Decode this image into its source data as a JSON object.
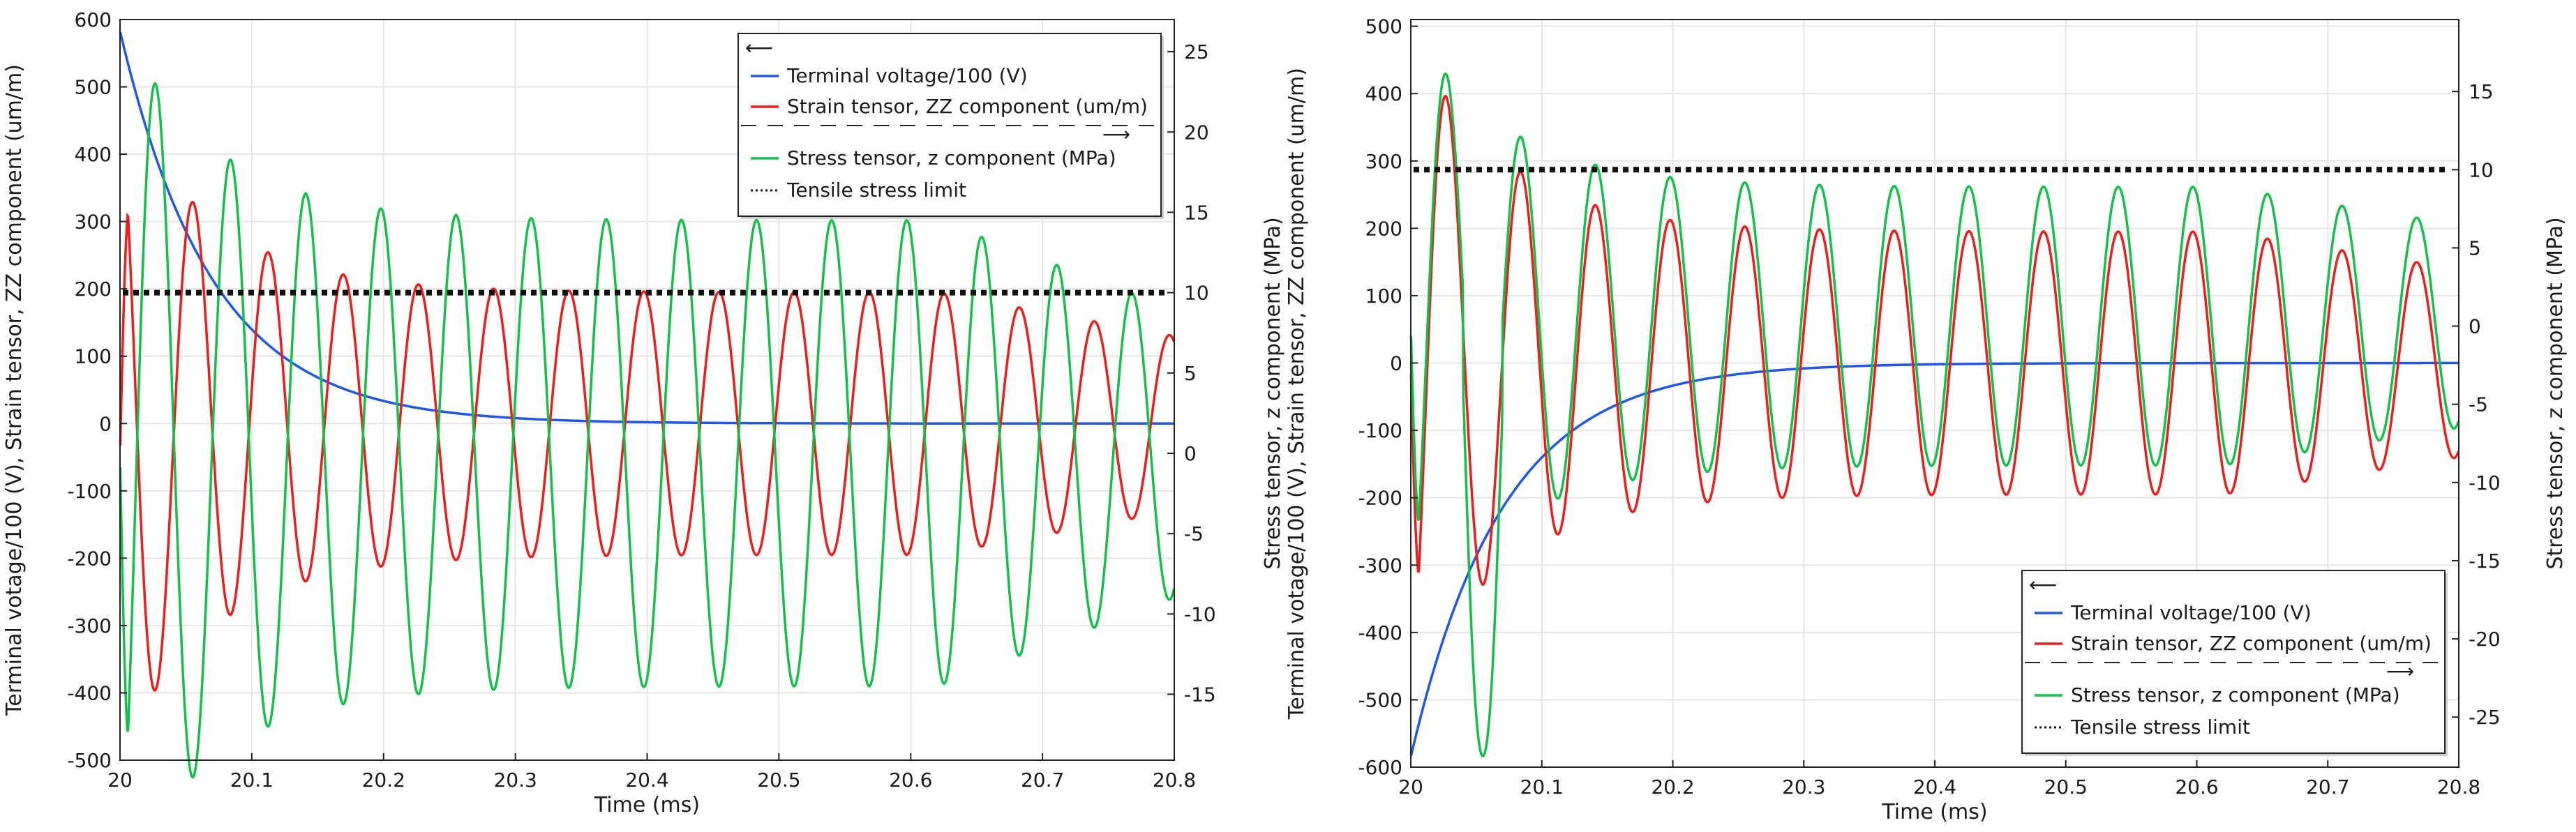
{
  "chart_data": [
    {
      "type": "line",
      "xlabel": "Time (ms)",
      "ylabel": "Terminal votage/100 (V), Strain tensor, ZZ component (um/m)",
      "y2label": "",
      "xlim": [
        20,
        20.8
      ],
      "ylim": [
        -500,
        600
      ],
      "y2lim": [
        -19.1,
        27
      ],
      "x_ticks": [
        "20",
        "20.1",
        "20.2",
        "20.3",
        "20.4",
        "20.5",
        "20.6",
        "20.7",
        "20.8"
      ],
      "y_ticks": [
        "600",
        "500",
        "400",
        "300",
        "200",
        "100",
        "0",
        "-100",
        "-200",
        "-300",
        "-400",
        "-500"
      ],
      "y2_ticks": [
        "25",
        "20",
        "15",
        "10",
        "5",
        "0",
        "-5",
        "-10",
        "-15"
      ],
      "legend": {
        "left_arrow": "⟵",
        "right_arrow": "⟶",
        "entries": [
          {
            "label": "Terminal voltage/100 (V)",
            "color": "#1f57e6",
            "style": "solid"
          },
          {
            "label": "Strain tensor, ZZ component (um/m)",
            "color": "#ee1c1c",
            "style": "solid"
          },
          {
            "label": "Stress tensor, z component (MPa)",
            "color": "#12c14a",
            "style": "solid"
          },
          {
            "label": "Tensile stress limit",
            "color": "#111111",
            "style": "dotted"
          }
        ]
      },
      "series": [
        {
          "name": "Terminal voltage/100 (V)",
          "axis": "left",
          "model": "decay",
          "start": 583,
          "tau_ms": 0.07,
          "color": "#1f57e6"
        },
        {
          "name": "Strain tensor, ZZ component (um/m)",
          "axis": "left",
          "model": "damped_sine",
          "start_value": -50,
          "mean": 0,
          "initial_peak": -490,
          "amplitude": 195,
          "period_ms": 0.057,
          "decay_ms": 0.07,
          "late_decay_start_ms": 20.62,
          "late_decay_to": 130,
          "color": "#ee1c1c"
        },
        {
          "name": "Stress tensor, z component (MPa)",
          "axis": "right",
          "model": "damped_sine",
          "start_value": 0,
          "mean": 0,
          "initial_peak": 27,
          "amplitude": 14.5,
          "period_ms": 0.057,
          "decay_ms": 0.07,
          "late_decay_start_ms": 20.62,
          "late_decay_to": 9,
          "color": "#12c14a"
        },
        {
          "name": "Tensile stress limit",
          "axis": "right",
          "model": "constant",
          "value": 10,
          "color": "#111111"
        }
      ]
    },
    {
      "type": "line",
      "xlabel": "Time (ms)",
      "ylabel": "Terminal votage/100 (V), Strain tensor, ZZ component (um/m)",
      "y2label": "Stress tensor, z component (MPa)",
      "ylabel_outer": "Stress tensor, z component (MPa)",
      "xlim": [
        20,
        20.8
      ],
      "ylim": [
        -600,
        510
      ],
      "y2lim": [
        -28.2,
        19.6
      ],
      "x_ticks": [
        "20",
        "20.1",
        "20.2",
        "20.3",
        "20.4",
        "20.5",
        "20.6",
        "20.7",
        "20.8"
      ],
      "y_ticks": [
        "500",
        "400",
        "300",
        "200",
        "100",
        "0",
        "-100",
        "-200",
        "-300",
        "-400",
        "-500",
        "-600"
      ],
      "y2_ticks": [
        "15",
        "10",
        "5",
        "0",
        "-5",
        "-10",
        "-15",
        "-20",
        "-25"
      ],
      "legend": {
        "left_arrow": "⟵",
        "right_arrow": "⟶",
        "entries": [
          {
            "label": "Terminal voltage/100 (V)",
            "color": "#1f57e6",
            "style": "solid"
          },
          {
            "label": "Strain tensor, ZZ component (um/m)",
            "color": "#ee1c1c",
            "style": "solid"
          },
          {
            "label": "Stress tensor, z component (MPa)",
            "color": "#12c14a",
            "style": "solid"
          },
          {
            "label": "Tensile stress limit",
            "color": "#111111",
            "style": "dotted"
          }
        ]
      },
      "series": [
        {
          "name": "Terminal voltage/100 (V)",
          "axis": "left",
          "model": "decay",
          "start": -585,
          "tau_ms": 0.07,
          "color": "#1f57e6"
        },
        {
          "name": "Strain tensor, ZZ component (um/m)",
          "axis": "left",
          "model": "damped_sine",
          "start_value": 0,
          "mean": 0,
          "initial_peak": 490,
          "amplitude": 195,
          "period_ms": 0.057,
          "decay_ms": 0.07,
          "late_decay_start_ms": 20.62,
          "late_decay_to": 140,
          "color": "#ee1c1c"
        },
        {
          "name": "Stress tensor, z component (MPa)",
          "axis": "right",
          "model": "damped_sine",
          "start_value": 0,
          "mean": 0,
          "initial_peak": 19.5,
          "amplitude": 8.9,
          "period_ms": 0.057,
          "decay_ms": 0.07,
          "late_decay_start_ms": 20.62,
          "late_decay_to": 6.5,
          "first_trough": -27.5,
          "color": "#12c14a"
        },
        {
          "name": "Tensile stress limit",
          "axis": "right",
          "model": "constant",
          "value": 10,
          "color": "#111111"
        }
      ]
    }
  ]
}
